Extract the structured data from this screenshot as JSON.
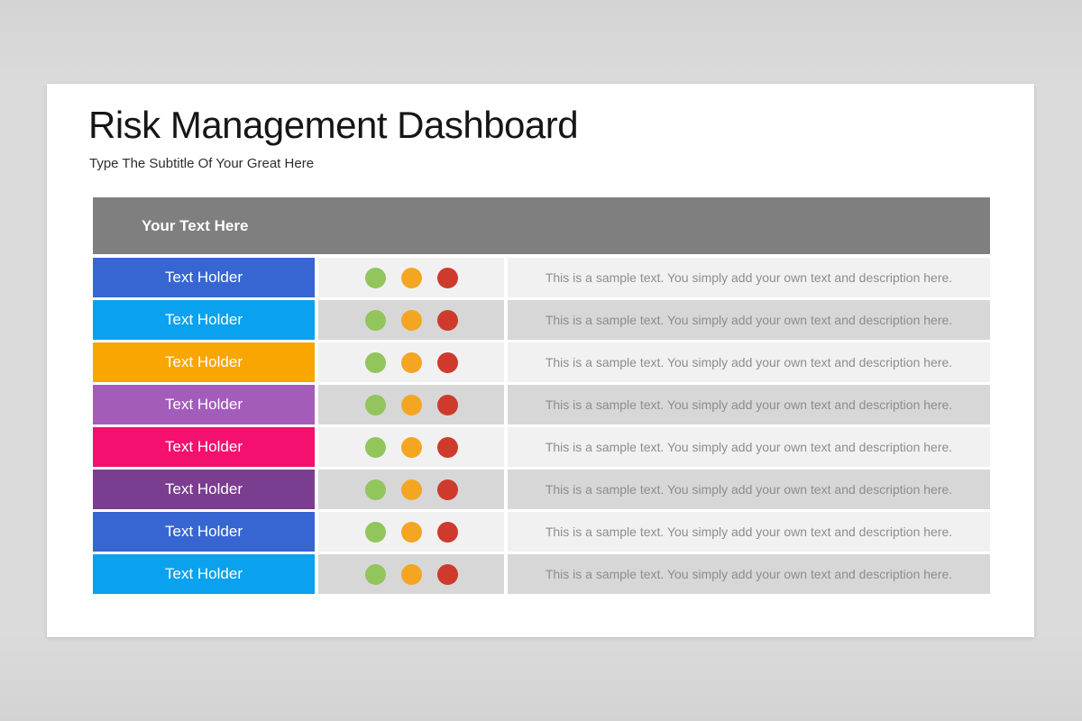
{
  "page": {
    "background_color": "#d9d9d9",
    "card_color": "#ffffff"
  },
  "header": {
    "title": "Risk Management Dashboard",
    "subtitle": "Type The Subtitle Of Your Great Here"
  },
  "table": {
    "header": {
      "label": "Your Text Here",
      "background": "#7f7f7f",
      "text_color": "#ffffff"
    },
    "row_shades": {
      "light": "#f1f1f1",
      "dark": "#d7d7d7"
    },
    "status_dot_colors": {
      "green": "#92c55c",
      "amber": "#f4a622",
      "red": "#ce3a2b"
    },
    "sample_text": "This is a sample text. You simply add your own text and description here.",
    "rows": [
      {
        "label": "Text Holder",
        "color": "#3766d3",
        "shade": "light",
        "dots": [
          "green",
          "amber",
          "red"
        ]
      },
      {
        "label": "Text Holder",
        "color": "#0aa2ef",
        "shade": "dark",
        "dots": [
          "green",
          "amber",
          "red"
        ]
      },
      {
        "label": "Text Holder",
        "color": "#f9a602",
        "shade": "light",
        "dots": [
          "green",
          "amber",
          "red"
        ]
      },
      {
        "label": "Text Holder",
        "color": "#a45cbb",
        "shade": "dark",
        "dots": [
          "green",
          "amber",
          "red"
        ]
      },
      {
        "label": "Text Holder",
        "color": "#f3106f",
        "shade": "light",
        "dots": [
          "green",
          "amber",
          "red"
        ]
      },
      {
        "label": "Text Holder",
        "color": "#7b3d90",
        "shade": "dark",
        "dots": [
          "green",
          "amber",
          "red"
        ]
      },
      {
        "label": "Text Holder",
        "color": "#3766d3",
        "shade": "light",
        "dots": [
          "green",
          "amber",
          "red"
        ]
      },
      {
        "label": "Text Holder",
        "color": "#0aa2ef",
        "shade": "dark",
        "dots": [
          "green",
          "amber",
          "red"
        ]
      }
    ]
  }
}
